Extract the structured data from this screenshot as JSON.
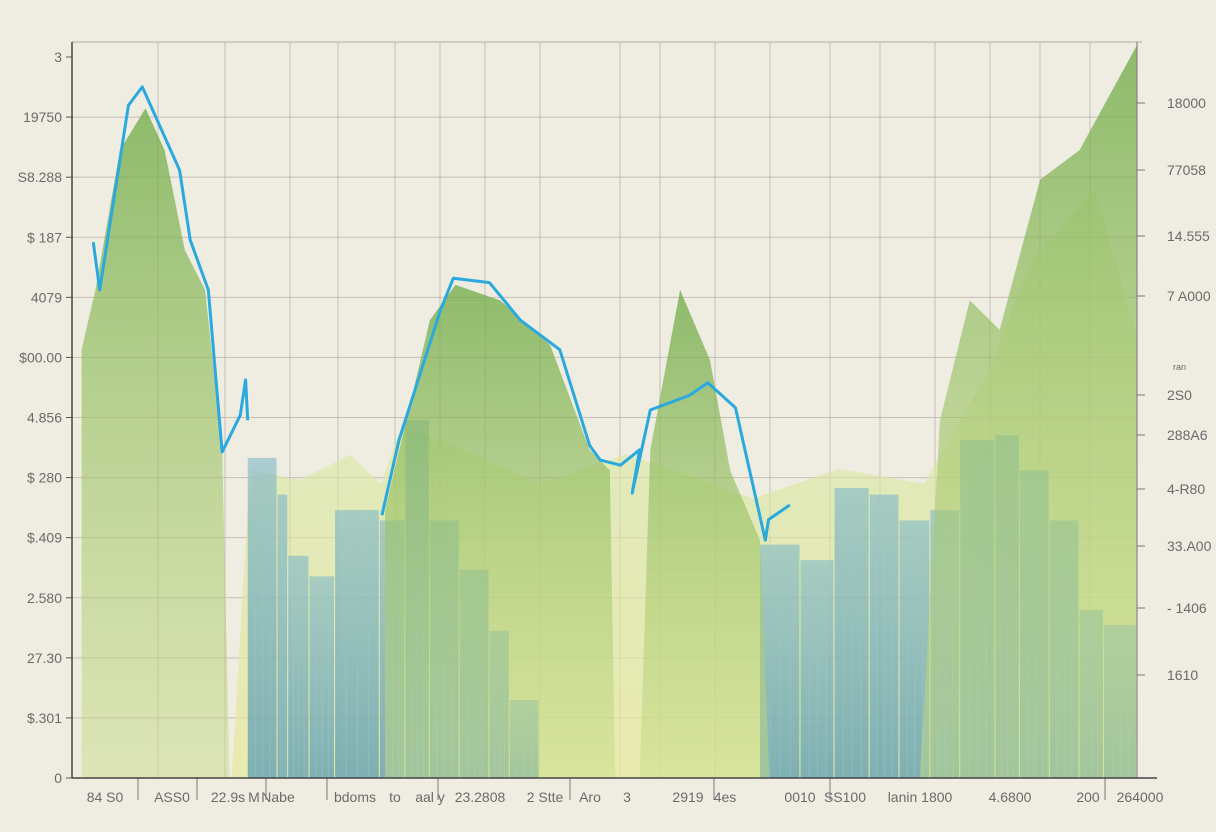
{
  "chart_data": {
    "type": "area",
    "title": "",
    "xlabel": "",
    "ylabel": "",
    "xlim": [
      0,
      100
    ],
    "ylim": [
      0,
      100
    ],
    "grid": true,
    "left_ticks": [
      "3",
      "19750",
      "S8.288",
      "$ 187",
      "4079",
      "$00.00",
      "4.856",
      "$ 280",
      "$.409",
      "2.580",
      "27.30",
      "$.301",
      "0"
    ],
    "right_ticks": [
      "18000",
      "77058",
      "14.555",
      "7 A000",
      "2S0",
      "288A6",
      "4-R80",
      "33.A00",
      "- 1406",
      "1610"
    ],
    "right_minor_label": "ran",
    "x_ticks": [
      "84 S0",
      "ASS0",
      "22.9s",
      "M",
      "Nabe",
      "bdoms",
      "to",
      "aal y",
      "23.2808",
      "2 Stte",
      "Aro",
      "3",
      "2919",
      "4es",
      "0010",
      "SS100",
      "lanin 1800",
      "4.6800",
      "200",
      "264000"
    ],
    "colors": {
      "line": "#2aa9de",
      "green": "#7fb04f",
      "light_green": "#d4e390",
      "blue_bar": "#5a9fb6",
      "grid": "#b8a9a6"
    },
    "series": [
      {
        "name": "line",
        "kind": "line",
        "segments": [
          [
            [
              2.0,
              72.8
            ],
            [
              2.6,
              66.3
            ],
            [
              5.3,
              91.4
            ],
            [
              6.6,
              93.9
            ],
            [
              10.1,
              82.6
            ],
            [
              11.1,
              73.1
            ],
            [
              12.8,
              66.3
            ],
            [
              14.1,
              44.3
            ],
            [
              15.8,
              49.3
            ],
            [
              16.3,
              54.1
            ],
            [
              16.5,
              48.6
            ]
          ],
          [
            [
              29.1,
              35.7
            ],
            [
              30.7,
              45.9
            ],
            [
              34.6,
              63.6
            ],
            [
              35.8,
              67.9
            ],
            [
              39.2,
              67.3
            ],
            [
              42.1,
              62.2
            ],
            [
              45.8,
              58.2
            ],
            [
              48.6,
              45.2
            ],
            [
              49.6,
              43.2
            ],
            [
              51.5,
              42.5
            ],
            [
              53.3,
              44.6
            ],
            [
              52.6,
              38.7
            ],
            [
              54.3,
              50.0
            ],
            [
              58.0,
              52.0
            ],
            [
              59.7,
              53.7
            ],
            [
              62.3,
              50.3
            ],
            [
              65.1,
              32.3
            ],
            [
              65.4,
              35.1
            ],
            [
              67.4,
              37.1
            ]
          ]
        ]
      },
      {
        "name": "area-left",
        "kind": "area",
        "points": [
          [
            0.9,
            0
          ],
          [
            0.9,
            58.2
          ],
          [
            2.2,
            66.3
          ],
          [
            4.5,
            85.3
          ],
          [
            6.9,
            91.0
          ],
          [
            8.7,
            85.3
          ],
          [
            10.6,
            71.7
          ],
          [
            12.5,
            66.3
          ],
          [
            14.1,
            44.6
          ],
          [
            14.8,
            0
          ]
        ]
      },
      {
        "name": "area-middle",
        "kind": "area",
        "points": [
          [
            29.4,
            0
          ],
          [
            29.4,
            36.4
          ],
          [
            33.6,
            62.2
          ],
          [
            36.0,
            67.0
          ],
          [
            40.2,
            64.9
          ],
          [
            44.9,
            58.8
          ],
          [
            48.6,
            44.6
          ],
          [
            50.5,
            41.8
          ],
          [
            51.0,
            0
          ]
        ]
      },
      {
        "name": "area-peak",
        "kind": "area",
        "points": [
          [
            53.3,
            0
          ],
          [
            54.3,
            44.6
          ],
          [
            57.1,
            66.3
          ],
          [
            59.9,
            56.8
          ],
          [
            61.8,
            41.8
          ],
          [
            64.6,
            32.3
          ],
          [
            65.5,
            0
          ]
        ]
      },
      {
        "name": "area-right",
        "kind": "area",
        "points": [
          [
            79.6,
            0
          ],
          [
            81.5,
            48.6
          ],
          [
            84.3,
            64.9
          ],
          [
            87.1,
            60.9
          ],
          [
            90.9,
            81.3
          ],
          [
            94.6,
            85.3
          ],
          [
            100,
            99.6
          ],
          [
            100,
            17.4
          ],
          [
            100,
            0
          ]
        ]
      },
      {
        "name": "area-haze",
        "kind": "haze",
        "points": [
          [
            15,
            0
          ],
          [
            16.7,
            41.8
          ],
          [
            21.4,
            40.5
          ],
          [
            26.1,
            43.9
          ],
          [
            29,
            40
          ],
          [
            31,
            48
          ],
          [
            36,
            45
          ],
          [
            44,
            40
          ],
          [
            52,
            44
          ],
          [
            64,
            38
          ],
          [
            72,
            42
          ],
          [
            80,
            40
          ],
          [
            86,
            55
          ],
          [
            90,
            70
          ],
          [
            96,
            80
          ],
          [
            100,
            60
          ],
          [
            100,
            0
          ]
        ]
      }
    ],
    "bars": [
      [
        16.5,
        19.3,
        43.5
      ],
      [
        19.3,
        20.3,
        38.5
      ],
      [
        20.3,
        22.3,
        30.2
      ],
      [
        22.3,
        24.7,
        27.4
      ],
      [
        24.7,
        28.9,
        36.4
      ],
      [
        28.9,
        31.3,
        35.0
      ],
      [
        31.3,
        33.6,
        48.6
      ],
      [
        33.6,
        36.4,
        35.0
      ],
      [
        36.4,
        39.2,
        28.3
      ],
      [
        39.2,
        41.1,
        20.0
      ],
      [
        41.1,
        43.9,
        10.6
      ],
      [
        64.6,
        68.4,
        31.7
      ],
      [
        68.4,
        71.6,
        29.6
      ],
      [
        71.6,
        74.9,
        39.4
      ],
      [
        74.9,
        77.7,
        38.5
      ],
      [
        77.7,
        80.6,
        35.0
      ],
      [
        80.6,
        83.4,
        36.4
      ],
      [
        83.4,
        86.7,
        45.9
      ],
      [
        86.7,
        89.0,
        46.6
      ],
      [
        89.0,
        91.8,
        41.8
      ],
      [
        91.8,
        94.6,
        35.0
      ],
      [
        94.6,
        96.9,
        22.8
      ],
      [
        96.9,
        100,
        20.8
      ]
    ]
  }
}
